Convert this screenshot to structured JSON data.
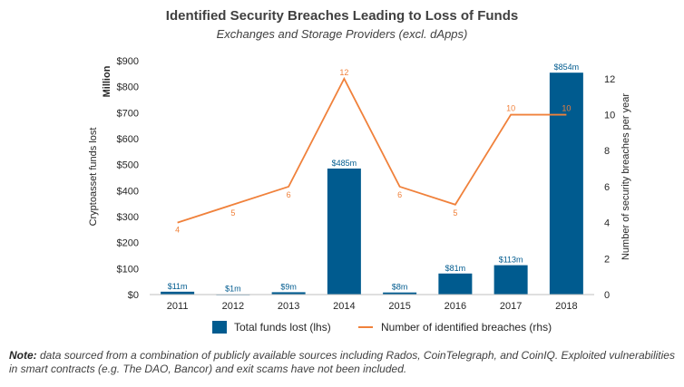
{
  "chart_data": {
    "type": "bar+line",
    "title": "Identified Security Breaches Leading to Loss of Funds",
    "subtitle": "Exchanges and Storage Providers (excl. dApps)",
    "categories": [
      "2011",
      "2012",
      "2013",
      "2014",
      "2015",
      "2016",
      "2017",
      "2018"
    ],
    "series": [
      {
        "name": "Total funds lost (lhs)",
        "type": "bar",
        "axis": "left",
        "color": "#005b8f",
        "values": [
          11,
          1,
          9,
          485,
          8,
          81,
          113,
          854
        ],
        "labels": [
          "$11m",
          "$1m",
          "$9m",
          "$485m",
          "$8m",
          "$81m",
          "$113m",
          "$854m"
        ]
      },
      {
        "name": "Number of identified breaches (rhs)",
        "type": "line",
        "axis": "right",
        "color": "#f0813b",
        "values": [
          4,
          5,
          6,
          12,
          6,
          5,
          10,
          10
        ],
        "labels": [
          "4",
          "5",
          "6",
          "12",
          "6",
          "5",
          "10",
          "10"
        ]
      }
    ],
    "left_axis": {
      "label": "Cryptoasset funds lost",
      "unit_label": "Million",
      "ylim": [
        0,
        900
      ],
      "ticks": [
        0,
        100,
        200,
        300,
        400,
        500,
        600,
        700,
        800,
        900
      ],
      "tick_labels": [
        "$0",
        "$100",
        "$200",
        "$300",
        "$400",
        "$500",
        "$600",
        "$700",
        "$800",
        "$900"
      ]
    },
    "right_axis": {
      "label": "Number of security breaches per year",
      "ylim": [
        0,
        13
      ],
      "ticks": [
        0,
        2,
        4,
        6,
        8,
        10,
        12
      ],
      "tick_labels": [
        "0",
        "2",
        "4",
        "6",
        "8",
        "10",
        "12"
      ]
    },
    "grid": false,
    "legend_position": "bottom"
  },
  "note": {
    "label": "Note:",
    "text": " data sourced from a combination of publicly available sources including Rados, CoinTelegraph, and CoinIQ. Exploited vulnerabilities in smart contracts (e.g. The DAO, Bancor) and exit scams have not been included."
  }
}
